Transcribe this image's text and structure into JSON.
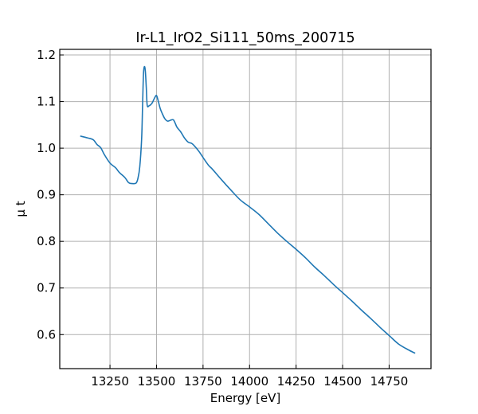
{
  "chart_data": {
    "type": "line",
    "title": "Ir-L1_IrO2_Si111_50ms_200715",
    "xlabel": "Energy [eV]",
    "ylabel": "μ t",
    "xlim": [
      12980,
      14975
    ],
    "ylim": [
      0.527,
      1.212
    ],
    "xticks": [
      13250,
      13500,
      13750,
      14000,
      14250,
      14500,
      14750
    ],
    "yticks": [
      0.6,
      0.7,
      0.8,
      0.9,
      1.0,
      1.1,
      1.2
    ],
    "xtick_labels": [
      "13250",
      "13500",
      "13750",
      "14000",
      "14250",
      "14500",
      "14750"
    ],
    "ytick_labels": [
      "0.6",
      "0.7",
      "0.8",
      "0.9",
      "1.0",
      "1.1",
      "1.2"
    ],
    "grid": true,
    "colors": {
      "line": "#1f77b4",
      "grid": "#b0b0b0",
      "axes": "#000000"
    },
    "series": [
      {
        "x": [
          13090,
          13130,
          13160,
          13180,
          13200,
          13220,
          13250,
          13280,
          13300,
          13330,
          13350,
          13370,
          13390,
          13400,
          13410,
          13420,
          13425,
          13430,
          13435,
          13440,
          13445,
          13450,
          13460,
          13475,
          13490,
          13500,
          13510,
          13520,
          13530,
          13545,
          13560,
          13575,
          13590,
          13600,
          13610,
          13630,
          13650,
          13670,
          13690,
          13710,
          13730,
          13750,
          13780,
          13800,
          13850,
          13900,
          13950,
          14000,
          14050,
          14100,
          14150,
          14200,
          14250,
          14300,
          14350,
          14400,
          14450,
          14500,
          14550,
          14600,
          14650,
          14700,
          14750,
          14800,
          14850,
          14890
        ],
        "y": [
          1.026,
          1.022,
          1.018,
          1.008,
          1.001,
          0.986,
          0.968,
          0.958,
          0.948,
          0.937,
          0.926,
          0.924,
          0.925,
          0.935,
          0.96,
          1.02,
          1.09,
          1.16,
          1.175,
          1.165,
          1.13,
          1.092,
          1.091,
          1.096,
          1.108,
          1.113,
          1.1,
          1.085,
          1.075,
          1.063,
          1.058,
          1.06,
          1.061,
          1.054,
          1.045,
          1.035,
          1.022,
          1.013,
          1.01,
          1.002,
          0.992,
          0.98,
          0.963,
          0.955,
          0.932,
          0.91,
          0.889,
          0.874,
          0.858,
          0.838,
          0.818,
          0.8,
          0.783,
          0.765,
          0.745,
          0.727,
          0.708,
          0.69,
          0.672,
          0.653,
          0.635,
          0.616,
          0.598,
          0.58,
          0.568,
          0.56
        ]
      }
    ]
  }
}
